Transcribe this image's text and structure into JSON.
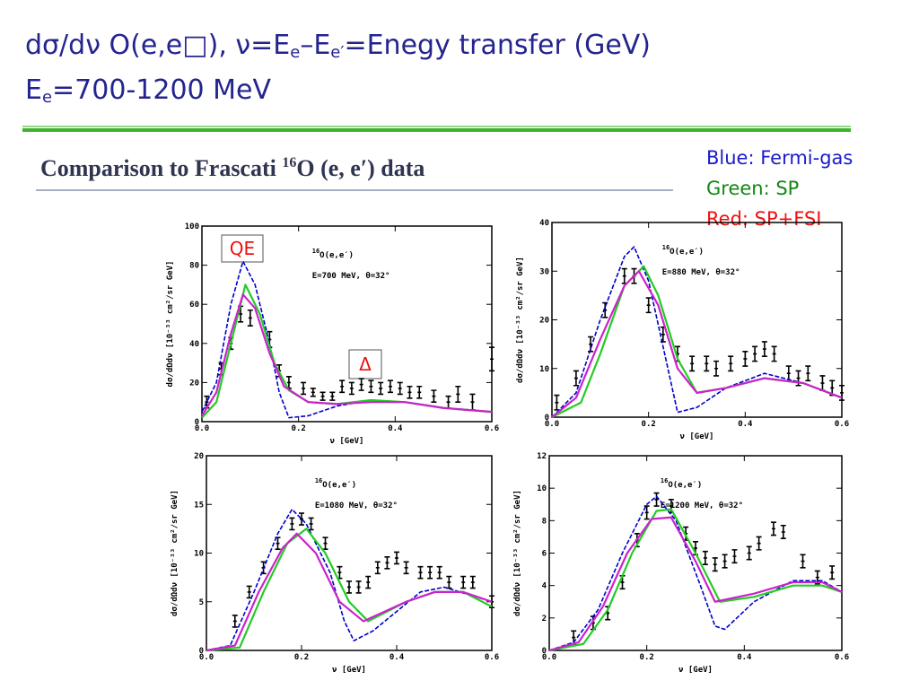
{
  "header": {
    "line1_parts": [
      "dσ/dν O(e,e□), ν=E",
      "e",
      "–E",
      "e′",
      "=Enegy transfer (GeV)"
    ],
    "line2_parts": [
      "E",
      "e",
      "=700-1200 MeV"
    ]
  },
  "banner": {
    "before": "Comparison to Frascati ",
    "mass": "16",
    "after": "O (e, e′) data"
  },
  "legend_notes": [
    {
      "text": "Blue:  Fermi-gas",
      "color": "#1a1acc"
    },
    {
      "text": "Green: SP",
      "color": "#118811"
    },
    {
      "text": "Red: SP+FSI",
      "color": "#ee1111"
    }
  ],
  "chart_data": [
    {
      "type": "line",
      "mass": "16",
      "reaction": "O(e,e′)",
      "kinematics": "E=700 MeV, θ=32°",
      "xlabel": "ν [GeV]",
      "ylabel": "dσ/dΩdν [10⁻³³ cm²/sr GeV]",
      "annotations": [
        "QE",
        "Δ"
      ],
      "xlim": [
        0,
        0.6
      ],
      "ylim": [
        0,
        100
      ],
      "xticks": [
        {
          "value": 0,
          "label": "0.0"
        },
        {
          "value": 0.2,
          "label": "0.2"
        },
        {
          "value": 0.4,
          "label": "0.4"
        },
        {
          "value": 0.6,
          "label": "0.6"
        }
      ],
      "yticks": [
        0,
        20,
        40,
        60,
        80,
        100
      ],
      "series": [
        {
          "style": "points",
          "color": "#000000",
          "x": [
            0.01,
            0.04,
            0.06,
            0.08,
            0.1,
            0.14,
            0.16,
            0.18,
            0.21,
            0.23,
            0.25,
            0.27,
            0.29,
            0.31,
            0.33,
            0.35,
            0.37,
            0.39,
            0.41,
            0.43,
            0.45,
            0.48,
            0.51,
            0.53,
            0.56,
            0.6
          ],
          "values": [
            10,
            27,
            40,
            55,
            53,
            42,
            26,
            20,
            17,
            15,
            13,
            13,
            18,
            17,
            19,
            18,
            17,
            18,
            17,
            15,
            15,
            13,
            10,
            14,
            10,
            32
          ],
          "errors": [
            3,
            3,
            3,
            4,
            4,
            4,
            3,
            3,
            3,
            2,
            2,
            2,
            3,
            3,
            3,
            3,
            3,
            3,
            3,
            3,
            3,
            3,
            3,
            4,
            4,
            6
          ]
        },
        {
          "style": "line",
          "color": "#0000cc",
          "dash": true,
          "x": [
            0,
            0.03,
            0.06,
            0.085,
            0.11,
            0.14,
            0.16,
            0.18,
            0.22,
            0.28,
            0.35,
            0.42,
            0.5,
            0.6
          ],
          "values": [
            5,
            20,
            60,
            82,
            70,
            40,
            15,
            2,
            3,
            8,
            11,
            10,
            7,
            5
          ]
        },
        {
          "style": "line",
          "color": "#22cc22",
          "dash": false,
          "x": [
            0,
            0.03,
            0.06,
            0.09,
            0.12,
            0.15,
            0.18,
            0.22,
            0.28,
            0.35,
            0.42,
            0.5,
            0.6
          ],
          "values": [
            2,
            10,
            40,
            70,
            55,
            30,
            16,
            10,
            9,
            11,
            10,
            7,
            5
          ]
        },
        {
          "style": "line",
          "color": "#cc22cc",
          "dash": false,
          "x": [
            0,
            0.03,
            0.06,
            0.085,
            0.11,
            0.14,
            0.17,
            0.22,
            0.28,
            0.35,
            0.42,
            0.5,
            0.6
          ],
          "values": [
            3,
            15,
            45,
            65,
            58,
            35,
            18,
            10,
            9,
            10,
            10,
            7,
            5
          ]
        }
      ]
    },
    {
      "type": "line",
      "mass": "16",
      "reaction": "O(e,e′)",
      "kinematics": "E=880 MeV, θ=32°",
      "xlabel": "ν [GeV]",
      "ylabel": "dσ/dΩdν [10⁻³³ cm²/sr GeV]",
      "xlim": [
        0,
        0.6
      ],
      "ylim": [
        0,
        40
      ],
      "xticks": [
        {
          "value": 0,
          "label": "0.0"
        },
        {
          "value": 0.2,
          "label": "0.2"
        },
        {
          "value": 0.4,
          "label": "0.4"
        },
        {
          "value": 0.6,
          "label": "0.6"
        }
      ],
      "yticks": [
        0,
        10,
        20,
        30,
        40
      ],
      "series": [
        {
          "style": "points",
          "color": "#000000",
          "x": [
            0.01,
            0.05,
            0.08,
            0.11,
            0.15,
            0.17,
            0.2,
            0.23,
            0.26,
            0.29,
            0.32,
            0.34,
            0.37,
            0.4,
            0.42,
            0.44,
            0.46,
            0.49,
            0.51,
            0.53,
            0.56,
            0.58,
            0.6
          ],
          "values": [
            3,
            8,
            15,
            22,
            29,
            29,
            23,
            17,
            13,
            11,
            11,
            10,
            11,
            12,
            13,
            14,
            13,
            9,
            8,
            9,
            7,
            6,
            5
          ],
          "errors": [
            1.5,
            1.5,
            1.5,
            1.5,
            1.5,
            1.5,
            1.5,
            1.5,
            1.5,
            1.5,
            1.5,
            1.5,
            1.5,
            1.5,
            1.5,
            1.5,
            1.5,
            1.5,
            1.5,
            1.5,
            1.5,
            1.5,
            1.5
          ]
        },
        {
          "style": "line",
          "color": "#0000cc",
          "dash": true,
          "x": [
            0,
            0.05,
            0.1,
            0.15,
            0.17,
            0.2,
            0.24,
            0.26,
            0.3,
            0.36,
            0.44,
            0.52,
            0.6
          ],
          "values": [
            0,
            5,
            20,
            33,
            35,
            28,
            10,
            1,
            2,
            6,
            9,
            7,
            4
          ]
        },
        {
          "style": "line",
          "color": "#22cc22",
          "dash": false,
          "x": [
            0,
            0.06,
            0.1,
            0.15,
            0.19,
            0.22,
            0.26,
            0.3,
            0.36,
            0.44,
            0.52,
            0.6
          ],
          "values": [
            0,
            3,
            13,
            27,
            31,
            25,
            12,
            5,
            6,
            8,
            7,
            4
          ]
        },
        {
          "style": "line",
          "color": "#cc22cc",
          "dash": false,
          "x": [
            0,
            0.05,
            0.1,
            0.15,
            0.18,
            0.22,
            0.26,
            0.3,
            0.36,
            0.44,
            0.52,
            0.6
          ],
          "values": [
            0,
            4,
            16,
            27,
            30,
            23,
            10,
            5,
            6,
            8,
            7,
            4
          ]
        }
      ]
    },
    {
      "type": "line",
      "mass": "16",
      "reaction": "O(e,e′)",
      "kinematics": "E=1080 MeV, θ=32°",
      "xlabel": "ν [GeV]",
      "ylabel": "dσ/dΩdν [10⁻³³ cm²/sr GeV]",
      "xlim": [
        0,
        0.6
      ],
      "ylim": [
        0,
        20
      ],
      "xticks": [
        {
          "value": 0,
          "label": "0.0"
        },
        {
          "value": 0.2,
          "label": "0.2"
        },
        {
          "value": 0.4,
          "label": "0.4"
        },
        {
          "value": 0.6,
          "label": "0.6"
        }
      ],
      "yticks": [
        0,
        5,
        10,
        15,
        20
      ],
      "series": [
        {
          "style": "points",
          "color": "#000000",
          "x": [
            0.06,
            0.09,
            0.12,
            0.15,
            0.18,
            0.2,
            0.22,
            0.25,
            0.28,
            0.3,
            0.32,
            0.34,
            0.36,
            0.38,
            0.4,
            0.42,
            0.45,
            0.47,
            0.49,
            0.51,
            0.54,
            0.56,
            0.6
          ],
          "values": [
            3,
            6,
            8.5,
            11,
            13,
            13.5,
            13,
            11,
            8,
            6.5,
            6.5,
            7,
            8.5,
            9,
            9.5,
            8.5,
            8,
            8,
            8,
            7,
            7,
            7,
            5
          ],
          "errors": [
            0.6,
            0.6,
            0.6,
            0.6,
            0.6,
            0.6,
            0.6,
            0.6,
            0.6,
            0.6,
            0.6,
            0.6,
            0.6,
            0.6,
            0.6,
            0.6,
            0.6,
            0.6,
            0.6,
            0.6,
            0.6,
            0.6,
            0.6
          ]
        },
        {
          "style": "line",
          "color": "#0000cc",
          "dash": true,
          "x": [
            0,
            0.05,
            0.1,
            0.15,
            0.18,
            0.21,
            0.26,
            0.29,
            0.31,
            0.35,
            0.45,
            0.5,
            0.6
          ],
          "values": [
            0,
            0.5,
            6,
            12,
            14.5,
            13,
            8,
            3,
            1,
            2,
            6,
            6.5,
            5
          ]
        },
        {
          "style": "line",
          "color": "#22cc22",
          "dash": false,
          "x": [
            0,
            0.07,
            0.12,
            0.17,
            0.21,
            0.25,
            0.3,
            0.34,
            0.42,
            0.48,
            0.54,
            0.6
          ],
          "values": [
            0,
            0.3,
            6,
            11,
            12.5,
            10,
            5,
            3,
            5,
            6,
            6,
            4.5
          ]
        },
        {
          "style": "line",
          "color": "#cc22cc",
          "dash": false,
          "x": [
            0,
            0.06,
            0.11,
            0.16,
            0.19,
            0.23,
            0.28,
            0.33,
            0.42,
            0.48,
            0.54,
            0.6
          ],
          "values": [
            0,
            0.5,
            6,
            10.5,
            12,
            10,
            5,
            3,
            5,
            6,
            6,
            5
          ]
        }
      ]
    },
    {
      "type": "line",
      "mass": "16",
      "reaction": "O(e,e′)",
      "kinematics": "E=1200 MeV, θ=32°",
      "xlabel": "ν [GeV]",
      "ylabel": "dσ/dΩdν [10⁻³³ cm²/sr GeV]",
      "xlim": [
        0,
        0.6
      ],
      "ylim": [
        0,
        12
      ],
      "xticks": [
        {
          "value": 0,
          "label": "0.0"
        },
        {
          "value": 0.2,
          "label": "0.2"
        },
        {
          "value": 0.4,
          "label": "0.4"
        },
        {
          "value": 0.6,
          "label": "0.6"
        }
      ],
      "yticks": [
        0,
        2,
        4,
        6,
        8,
        10,
        12
      ],
      "series": [
        {
          "style": "points",
          "color": "#000000",
          "x": [
            0.05,
            0.09,
            0.12,
            0.15,
            0.18,
            0.2,
            0.22,
            0.25,
            0.28,
            0.3,
            0.32,
            0.34,
            0.36,
            0.38,
            0.41,
            0.43,
            0.46,
            0.48,
            0.52,
            0.55,
            0.58
          ],
          "values": [
            0.8,
            1.7,
            2.3,
            4.2,
            6.8,
            8.5,
            9.3,
            8.9,
            7.2,
            6.3,
            5.7,
            5.3,
            5.5,
            5.8,
            6,
            6.6,
            7.5,
            7.3,
            5.5,
            4.5,
            4.8
          ],
          "errors": [
            0.4,
            0.4,
            0.4,
            0.4,
            0.4,
            0.4,
            0.4,
            0.4,
            0.4,
            0.4,
            0.4,
            0.4,
            0.4,
            0.4,
            0.4,
            0.4,
            0.4,
            0.4,
            0.4,
            0.4,
            0.4
          ]
        },
        {
          "style": "line",
          "color": "#0000cc",
          "dash": true,
          "x": [
            0,
            0.05,
            0.1,
            0.15,
            0.2,
            0.22,
            0.26,
            0.31,
            0.34,
            0.36,
            0.42,
            0.5,
            0.56,
            0.6
          ],
          "values": [
            0,
            0.5,
            2.5,
            6,
            9,
            9.5,
            8,
            4,
            1.5,
            1.3,
            3,
            4.3,
            4.3,
            3.6
          ]
        },
        {
          "style": "line",
          "color": "#22cc22",
          "dash": false,
          "x": [
            0,
            0.07,
            0.12,
            0.17,
            0.22,
            0.25,
            0.3,
            0.35,
            0.42,
            0.5,
            0.56,
            0.6
          ],
          "values": [
            0,
            0.4,
            2.5,
            6,
            8.6,
            8.7,
            6,
            3,
            3.3,
            4,
            4,
            3.6
          ]
        },
        {
          "style": "line",
          "color": "#cc22cc",
          "dash": false,
          "x": [
            0,
            0.06,
            0.11,
            0.16,
            0.21,
            0.25,
            0.3,
            0.34,
            0.42,
            0.5,
            0.56,
            0.6
          ],
          "values": [
            0,
            0.5,
            2.7,
            6,
            8.1,
            8.2,
            5.5,
            3,
            3.5,
            4.2,
            4.2,
            3.6
          ]
        }
      ]
    }
  ]
}
